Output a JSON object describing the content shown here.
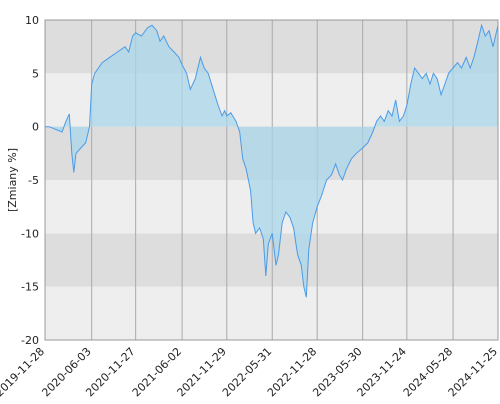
{
  "chart_data": {
    "type": "area",
    "y_label": "[Zmiany %]",
    "x": [
      "2019-11-28",
      "2019-12-15",
      "2020-01-15",
      "2020-02-05",
      "2020-02-20",
      "2020-03-05",
      "2020-03-15",
      "2020-03-23",
      "2020-04-01",
      "2020-04-20",
      "2020-05-10",
      "2020-05-25",
      "2020-06-03",
      "2020-06-15",
      "2020-07-15",
      "2020-08-15",
      "2020-09-15",
      "2020-10-15",
      "2020-10-30",
      "2020-11-15",
      "2020-11-27",
      "2020-12-20",
      "2021-01-15",
      "2021-02-01",
      "2021-02-20",
      "2021-03-05",
      "2021-03-20",
      "2021-04-10",
      "2021-05-01",
      "2021-05-20",
      "2021-06-02",
      "2021-06-20",
      "2021-07-05",
      "2021-07-25",
      "2021-08-15",
      "2021-08-30",
      "2021-09-15",
      "2021-10-05",
      "2021-10-25",
      "2021-11-10",
      "2021-11-20",
      "2021-11-29",
      "2021-12-15",
      "2022-01-05",
      "2022-01-20",
      "2022-02-01",
      "2022-02-15",
      "2022-03-05",
      "2022-03-15",
      "2022-03-25",
      "2022-04-10",
      "2022-04-25",
      "2022-05-05",
      "2022-05-15",
      "2022-05-31",
      "2022-06-15",
      "2022-06-25",
      "2022-07-10",
      "2022-07-25",
      "2022-08-10",
      "2022-08-25",
      "2022-09-10",
      "2022-09-25",
      "2022-10-05",
      "2022-10-15",
      "2022-10-25",
      "2022-11-10",
      "2022-11-28",
      "2022-12-15",
      "2023-01-05",
      "2023-01-25",
      "2023-02-10",
      "2023-02-25",
      "2023-03-10",
      "2023-03-25",
      "2023-04-15",
      "2023-05-05",
      "2023-05-30",
      "2023-06-20",
      "2023-07-10",
      "2023-07-25",
      "2023-08-10",
      "2023-08-25",
      "2023-09-10",
      "2023-09-25",
      "2023-10-10",
      "2023-10-25",
      "2023-11-10",
      "2023-11-24",
      "2023-12-10",
      "2023-12-25",
      "2024-01-10",
      "2024-01-25",
      "2024-02-10",
      "2024-02-25",
      "2024-03-10",
      "2024-03-25",
      "2024-04-10",
      "2024-04-25",
      "2024-05-10",
      "2024-05-28",
      "2024-06-15",
      "2024-07-01",
      "2024-07-20",
      "2024-08-05",
      "2024-08-20",
      "2024-09-05",
      "2024-09-20",
      "2024-10-05",
      "2024-10-20",
      "2024-11-05",
      "2024-11-15",
      "2024-11-25"
    ],
    "series": [
      {
        "color": "#4a9be8",
        "fill": "#a9d6ea",
        "values": [
          0,
          0,
          -0.3,
          -0.5,
          0.5,
          1.2,
          -2.5,
          -4.3,
          -2.5,
          -2,
          -1.5,
          0,
          4,
          5,
          6,
          6.5,
          7,
          7.5,
          7,
          8.5,
          8.8,
          8.5,
          9.3,
          9.5,
          9,
          8,
          8.5,
          7.5,
          7,
          6.5,
          5.8,
          5,
          3.5,
          4.5,
          6.5,
          5.5,
          5,
          3.5,
          2,
          1,
          1.5,
          1,
          1.3,
          0.5,
          -0.5,
          -3,
          -4,
          -6,
          -9,
          -10,
          -9.5,
          -10.5,
          -14,
          -11,
          -10,
          -13,
          -12,
          -9,
          -8,
          -8.5,
          -9.5,
          -12,
          -13,
          -15,
          -16,
          -11.5,
          -9,
          -7.5,
          -6.5,
          -5,
          -4.5,
          -3.5,
          -4.5,
          -5,
          -4,
          -3,
          -2.5,
          -2,
          -1.5,
          -0.5,
          0.5,
          1,
          0.5,
          1.5,
          1,
          2.5,
          0.5,
          1,
          2,
          4,
          5.5,
          5,
          4.5,
          5,
          4,
          5,
          4.5,
          3,
          4,
          5,
          5.5,
          6,
          5.5,
          6.5,
          5.5,
          6.5,
          8,
          9.5,
          8.5,
          9,
          7.5,
          8.5,
          9.5
        ]
      }
    ],
    "xlim": [
      "2019-11-28",
      "2024-11-25"
    ],
    "xticks": [
      "2019-11-28",
      "2020-06-03",
      "2020-11-27",
      "2021-06-02",
      "2021-11-29",
      "2022-05-31",
      "2022-11-28",
      "2023-05-30",
      "2023-11-24",
      "2024-05-28",
      "2024-11-25"
    ],
    "ylim": [
      -20,
      10
    ],
    "yticks": [
      -20,
      -15,
      -10,
      -5,
      0,
      5,
      10
    ],
    "band_colors": [
      "#eeeeee",
      "#dddddd"
    ],
    "grid": true
  }
}
